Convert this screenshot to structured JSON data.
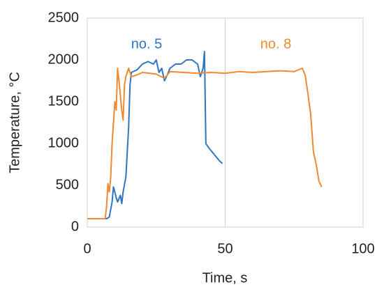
{
  "chart_data": {
    "type": "line",
    "x_label": "Time, s",
    "y_label": "Temperature, °C",
    "xlim": [
      0,
      100
    ],
    "xticks": [
      0,
      50,
      100
    ],
    "ylim": [
      0,
      2500
    ],
    "yticks": [
      0,
      500,
      1000,
      1500,
      2000,
      2500
    ],
    "grid": true,
    "series": [
      {
        "name": "no. 5",
        "color": "#2e75c5",
        "x": [
          0,
          7,
          8,
          9,
          9.5,
          10,
          10.5,
          11,
          12,
          12.5,
          13,
          14,
          15,
          15.5,
          16,
          18,
          20,
          22,
          24,
          25,
          26,
          27,
          28,
          29,
          30,
          32,
          34,
          36,
          38,
          40,
          41,
          42,
          42.5,
          43,
          44,
          46,
          48,
          49
        ],
        "values": [
          100,
          100,
          120,
          300,
          480,
          420,
          350,
          300,
          380,
          280,
          420,
          600,
          1200,
          1700,
          1850,
          1880,
          1950,
          1980,
          1950,
          2000,
          1850,
          1900,
          1750,
          1820,
          1900,
          1950,
          1950,
          2000,
          2000,
          1950,
          1800,
          1900,
          2100,
          1000,
          950,
          870,
          790,
          760
        ]
      },
      {
        "name": "no. 8",
        "color": "#f0892f",
        "x": [
          0,
          6.5,
          7,
          7.5,
          8,
          8.5,
          9,
          10,
          10.5,
          11,
          11.5,
          12.5,
          13,
          13.5,
          14,
          15,
          16,
          18,
          20,
          25,
          28,
          30,
          35,
          40,
          45,
          50,
          55,
          60,
          65,
          70,
          75,
          78,
          79,
          80,
          81,
          82,
          83,
          84,
          85
        ],
        "values": [
          100,
          100,
          250,
          520,
          420,
          600,
          1000,
          1500,
          1400,
          1900,
          1750,
          1400,
          1280,
          1700,
          1800,
          1900,
          1800,
          1820,
          1850,
          1830,
          1780,
          1860,
          1850,
          1840,
          1850,
          1840,
          1860,
          1850,
          1860,
          1870,
          1860,
          1900,
          1820,
          1600,
          1350,
          900,
          750,
          550,
          480
        ]
      }
    ]
  }
}
